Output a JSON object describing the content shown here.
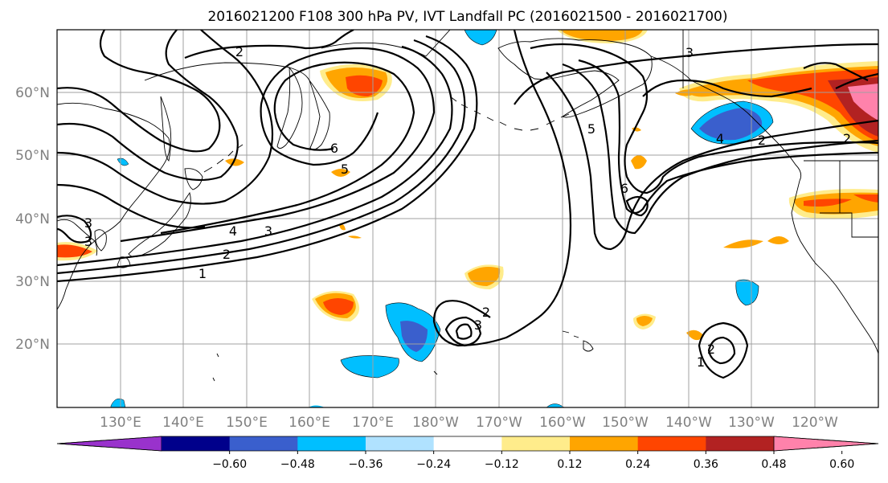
{
  "title": "2016021200 F108 300 hPa PV, IVT Landfall PC (2016021500 - 2016021700)",
  "map": {
    "lon_labels": [
      "130°E",
      "140°E",
      "150°E",
      "160°E",
      "170°E",
      "180°W",
      "170°W",
      "160°W",
      "150°W",
      "140°W",
      "130°W",
      "120°W"
    ],
    "lat_labels": [
      "60°N",
      "50°N",
      "40°N",
      "30°N",
      "20°N"
    ],
    "lon_range_deg_east": [
      120,
      250
    ],
    "lat_range": [
      10,
      70
    ],
    "grid": true
  },
  "contour_labels": [
    "2",
    "6",
    "5",
    "4",
    "3",
    "2",
    "1",
    "3",
    "3",
    "5",
    "6",
    "2",
    "4",
    "2",
    "3",
    "2",
    "1",
    "2",
    "3"
  ],
  "colorbar": {
    "ticks": [
      "−0.60",
      "−0.48",
      "−0.36",
      "−0.24",
      "−0.12",
      "0.12",
      "0.24",
      "0.36",
      "0.48",
      "0.60"
    ],
    "colors": [
      "#9932cc",
      "#00008b",
      "#3a5fcd",
      "#00bfff",
      "#b0e2ff",
      "#ffffff",
      "#ffec8b",
      "#ffa500",
      "#ff4500",
      "#b22222",
      "#ff82ab"
    ],
    "extend": "both"
  }
}
